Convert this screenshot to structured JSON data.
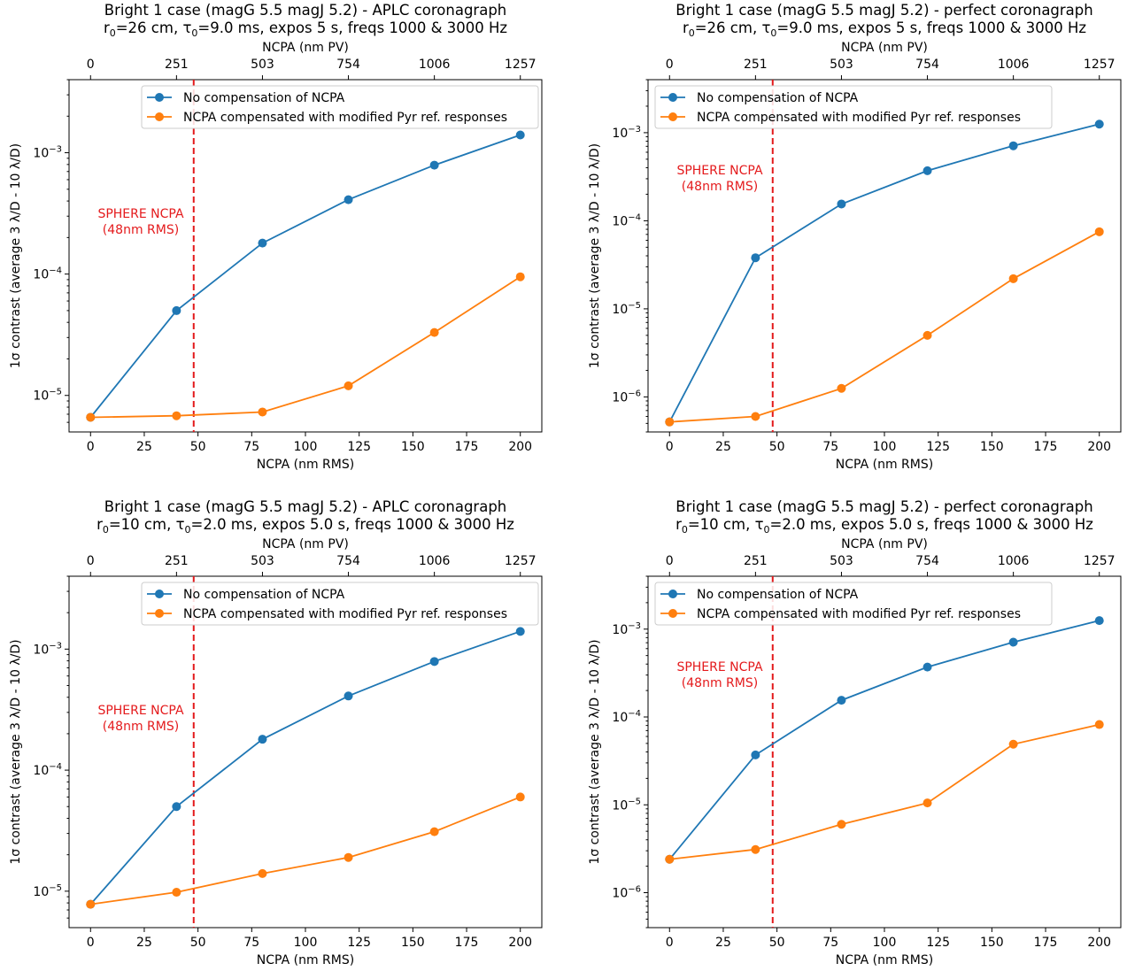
{
  "colors": {
    "blue": "#1f77b4",
    "orange": "#ff7f0e",
    "red": "#e31a1c"
  },
  "chart_data": [
    {
      "type": "line",
      "title": "Bright 1 case (magG 5.5 magJ 5.2) - APLC coronagraph",
      "subtitle": {
        "r": "r",
        "r_sub": "0",
        "r_val": "=26 cm, ",
        "tau": "τ",
        "tau_sub": "0",
        "rest": "=9.0 ms, expos 5 s, freqs 1000 & 3000 Hz"
      },
      "xlabel": "NCPA (nm RMS)",
      "x2label": "NCPA (nm PV)",
      "ylabel": "1σ contrast (average 3 λ/D - 10 λ/D)",
      "xlim": [
        -10,
        210
      ],
      "ylim": [
        5e-06,
        0.004
      ],
      "yscale": "log",
      "xticks": [
        "0",
        "25",
        "50",
        "75",
        "100",
        "125",
        "150",
        "175",
        "200"
      ],
      "x2ticks": [
        "0",
        "251",
        "503",
        "754",
        "1006",
        "1257"
      ],
      "x": [
        0,
        40,
        80,
        120,
        160,
        200
      ],
      "series": [
        {
          "name": "No compensation of NCPA",
          "values": [
            6.6e-06,
            5e-05,
            0.00018,
            0.00041,
            0.00079,
            0.0014
          ]
        },
        {
          "name": "NCPA compensated with modified Pyr ref. responses",
          "values": [
            6.6e-06,
            6.8e-06,
            7.3e-06,
            1.2e-05,
            3.3e-05,
            9.5e-05
          ]
        }
      ],
      "vline": {
        "x": 48,
        "label": [
          "SPHERE NCPA",
          "(48nm RMS)"
        ],
        "label_y": 0.0002
      }
    },
    {
      "type": "line",
      "title": "Bright 1 case (magG 5.5 magJ 5.2) - perfect coronagraph",
      "subtitle": {
        "r": "r",
        "r_sub": "0",
        "r_val": "=26 cm, ",
        "tau": "τ",
        "tau_sub": "0",
        "rest": "=9.0 ms, expos 5 s, freqs 1000 & 3000 Hz"
      },
      "xlabel": "NCPA (nm RMS)",
      "x2label": "NCPA (nm PV)",
      "ylabel": "1σ contrast (average 3 λ/D - 10 λ/D)",
      "xlim": [
        -10,
        210
      ],
      "ylim": [
        4e-07,
        0.004
      ],
      "yscale": "log",
      "xticks": [
        "0",
        "25",
        "50",
        "75",
        "100",
        "125",
        "150",
        "175",
        "200"
      ],
      "x2ticks": [
        "0",
        "251",
        "503",
        "754",
        "1006",
        "1257"
      ],
      "x": [
        0,
        40,
        80,
        120,
        160,
        200
      ],
      "series": [
        {
          "name": "No compensation of NCPA",
          "values": [
            5.2e-07,
            3.8e-05,
            0.000155,
            0.00037,
            0.00071,
            0.00125
          ]
        },
        {
          "name": "NCPA compensated with modified Pyr ref. responses",
          "values": [
            5.2e-07,
            6e-07,
            1.25e-06,
            5e-06,
            2.2e-05,
            7.5e-05
          ]
        }
      ],
      "vline": {
        "x": 48,
        "label": [
          "SPHERE NCPA",
          "(48nm RMS)"
        ],
        "label_y": 0.0002
      }
    },
    {
      "type": "line",
      "title": "Bright 1 case (magG 5.5 magJ 5.2) - APLC coronagraph",
      "subtitle": {
        "r": "r",
        "r_sub": "0",
        "r_val": "=10 cm, ",
        "tau": "τ",
        "tau_sub": "0",
        "rest": "=2.0 ms, expos 5.0 s, freqs 1000 & 3000 Hz"
      },
      "xlabel": "NCPA (nm RMS)",
      "x2label": "NCPA (nm PV)",
      "ylabel": "1σ contrast (average 3 λ/D - 10 λ/D)",
      "xlim": [
        -10,
        210
      ],
      "ylim": [
        5e-06,
        0.004
      ],
      "yscale": "log",
      "xticks": [
        "0",
        "25",
        "50",
        "75",
        "100",
        "125",
        "150",
        "175",
        "200"
      ],
      "x2ticks": [
        "0",
        "251",
        "503",
        "754",
        "1006",
        "1257"
      ],
      "x": [
        0,
        40,
        80,
        120,
        160,
        200
      ],
      "series": [
        {
          "name": "No compensation of NCPA",
          "values": [
            7.8e-06,
            5e-05,
            0.00018,
            0.00041,
            0.00079,
            0.0014
          ]
        },
        {
          "name": "NCPA compensated with modified Pyr ref. responses",
          "values": [
            7.8e-06,
            9.8e-06,
            1.4e-05,
            1.9e-05,
            3.1e-05,
            6e-05
          ]
        }
      ],
      "vline": {
        "x": 48,
        "label": [
          "SPHERE NCPA",
          "(48nm RMS)"
        ],
        "label_y": 0.0002
      }
    },
    {
      "type": "line",
      "title": "Bright 1 case (magG 5.5 magJ 5.2) - perfect coronagraph",
      "subtitle": {
        "r": "r",
        "r_sub": "0",
        "r_val": "=10 cm, ",
        "tau": "τ",
        "tau_sub": "0",
        "rest": "=2.0 ms, expos 5.0 s, freqs 1000 & 3000 Hz"
      },
      "xlabel": "NCPA (nm RMS)",
      "x2label": "NCPA (nm PV)",
      "ylabel": "1σ contrast (average 3 λ/D - 10 λ/D)",
      "xlim": [
        -10,
        210
      ],
      "ylim": [
        4e-07,
        0.004
      ],
      "yscale": "log",
      "xticks": [
        "0",
        "25",
        "50",
        "75",
        "100",
        "125",
        "150",
        "175",
        "200"
      ],
      "x2ticks": [
        "0",
        "251",
        "503",
        "754",
        "1006",
        "1257"
      ],
      "x": [
        0,
        40,
        80,
        120,
        160,
        200
      ],
      "series": [
        {
          "name": "No compensation of NCPA",
          "values": [
            2.4e-06,
            3.7e-05,
            0.000155,
            0.00037,
            0.00071,
            0.00125
          ]
        },
        {
          "name": "NCPA compensated with modified Pyr ref. responses",
          "values": [
            2.4e-06,
            3.1e-06,
            6e-06,
            1.05e-05,
            4.9e-05,
            8.2e-05
          ]
        }
      ],
      "vline": {
        "x": 48,
        "label": [
          "SPHERE NCPA",
          "(48nm RMS)"
        ],
        "label_y": 0.0002
      }
    }
  ]
}
